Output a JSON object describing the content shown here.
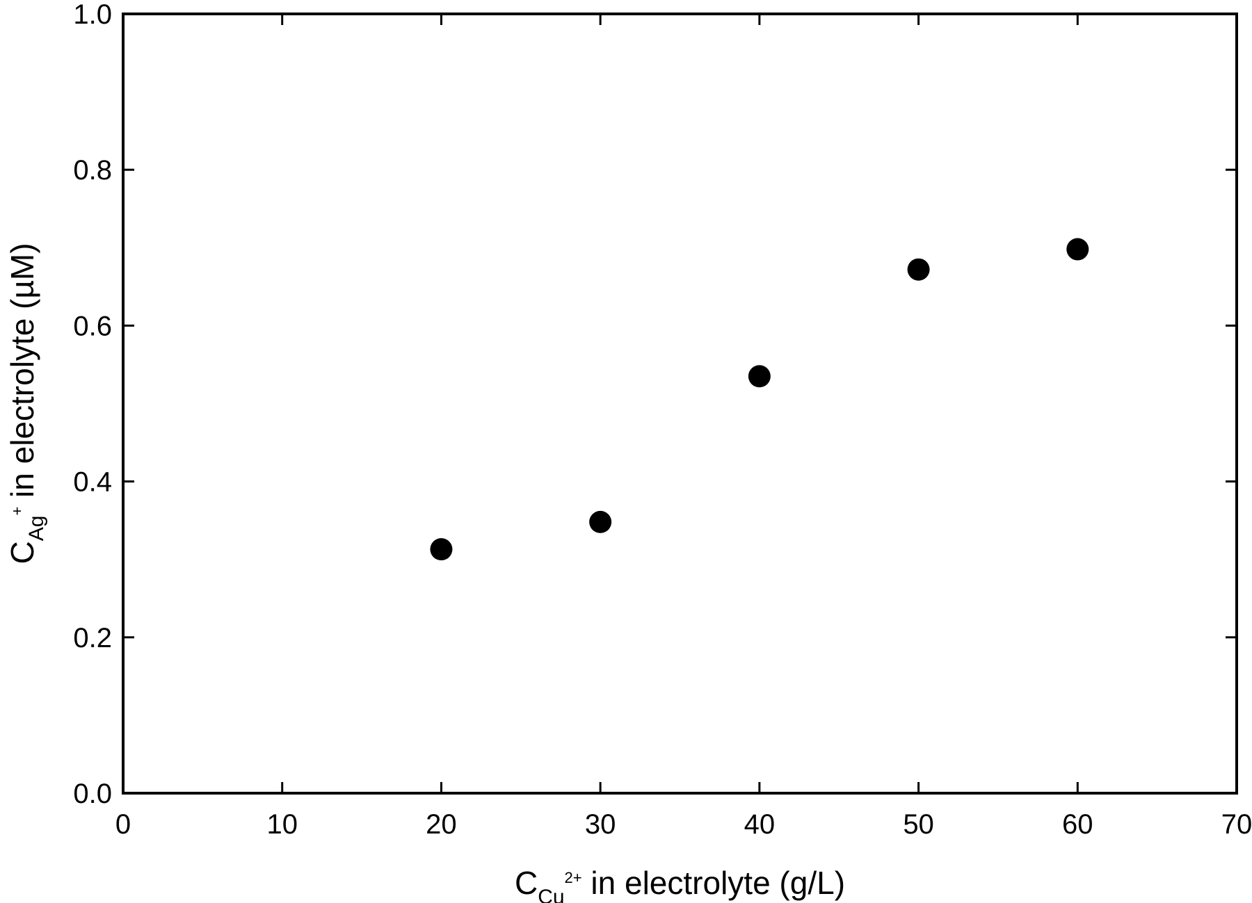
{
  "chart_data": {
    "type": "scatter",
    "title": "",
    "xlabel": {
      "main": "C",
      "sub": "Cu",
      "sup": "2+",
      "rest": " in electrolyte (g/L)"
    },
    "ylabel": {
      "main": "C",
      "sub": "Ag",
      "sup": "+",
      "rest": " in electrolyte (µM)"
    },
    "xlim": [
      0,
      70
    ],
    "ylim": [
      0.0,
      1.0
    ],
    "xticks": [
      0,
      10,
      20,
      30,
      40,
      50,
      60,
      70
    ],
    "yticks": [
      0.0,
      0.2,
      0.4,
      0.6,
      0.8,
      1.0
    ],
    "xtick_labels": [
      "0",
      "10",
      "20",
      "30",
      "40",
      "50",
      "60",
      "70"
    ],
    "ytick_labels": [
      "0.0",
      "0.2",
      "0.4",
      "0.6",
      "0.8",
      "1.0"
    ],
    "grid": false,
    "series": [
      {
        "marker": "filled-circle",
        "color": "#000000",
        "points": [
          {
            "x": 20,
            "y": 0.313
          },
          {
            "x": 30,
            "y": 0.348
          },
          {
            "x": 40,
            "y": 0.535
          },
          {
            "x": 50,
            "y": 0.672
          },
          {
            "x": 60,
            "y": 0.698
          }
        ]
      }
    ]
  }
}
